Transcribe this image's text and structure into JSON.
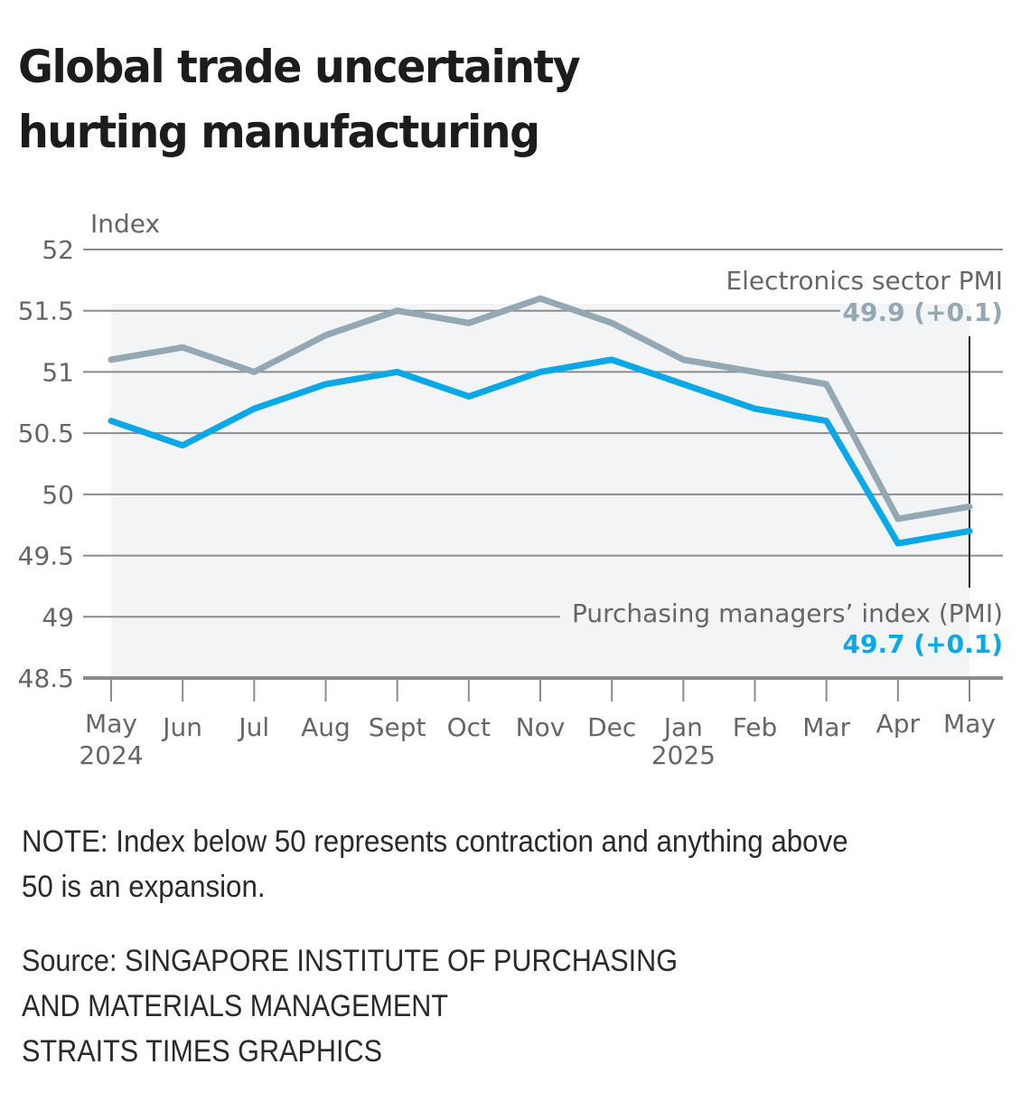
{
  "header": {
    "title": "Global trade uncertainty\nhurting manufacturing"
  },
  "colors": {
    "electronics": "#93a8b3",
    "pmi": "#0aa8e6",
    "grid": "#8c8c8c",
    "text": "#666666",
    "area": "#f2f4f5",
    "annotation_line": "#222222"
  },
  "chart_data": {
    "type": "line",
    "title": "Global trade uncertainty hurting manufacturing",
    "xlabel": "",
    "ylabel": "Index",
    "ylim": [
      48.5,
      52
    ],
    "yticks": [
      52,
      51.5,
      51,
      50.5,
      50,
      49.5,
      49,
      48.5
    ],
    "ytick_labels": [
      "52",
      "51.5",
      "51",
      "50.5",
      "50",
      "49.5",
      "49",
      "48.5"
    ],
    "grid": true,
    "categories": [
      "May",
      "Jun",
      "Jul",
      "Aug",
      "Sept",
      "Oct",
      "Nov",
      "Dec",
      "Jan",
      "Feb",
      "Mar",
      "Apr",
      "May"
    ],
    "category_sublabels": [
      "2024",
      "",
      "",
      "",
      "",
      "",
      "",
      "",
      "2025",
      "",
      "",
      "",
      ""
    ],
    "series": [
      {
        "name": "Electronics sector PMI",
        "key": "electronics",
        "values": [
          51.1,
          51.2,
          51.0,
          51.3,
          51.5,
          51.4,
          51.6,
          51.4,
          51.1,
          51.0,
          50.9,
          49.8,
          49.9
        ],
        "label_value": "49.9 (+0.1)"
      },
      {
        "name": "Purchasing managers’ index (PMI)",
        "key": "pmi",
        "values": [
          50.6,
          50.4,
          50.7,
          50.9,
          51.0,
          50.8,
          51.0,
          51.1,
          50.9,
          50.7,
          50.6,
          49.6,
          49.7
        ],
        "label_value": "49.7 (+0.1)"
      }
    ],
    "legend": "inline-right"
  },
  "footer": {
    "note": "NOTE: Index below 50 represents contraction and anything above 50 is an expansion.",
    "source_lines": [
      "Source: SINGAPORE INSTITUTE OF PURCHASING",
      "AND MATERIALS MANAGEMENT",
      "STRAITS TIMES GRAPHICS"
    ]
  }
}
